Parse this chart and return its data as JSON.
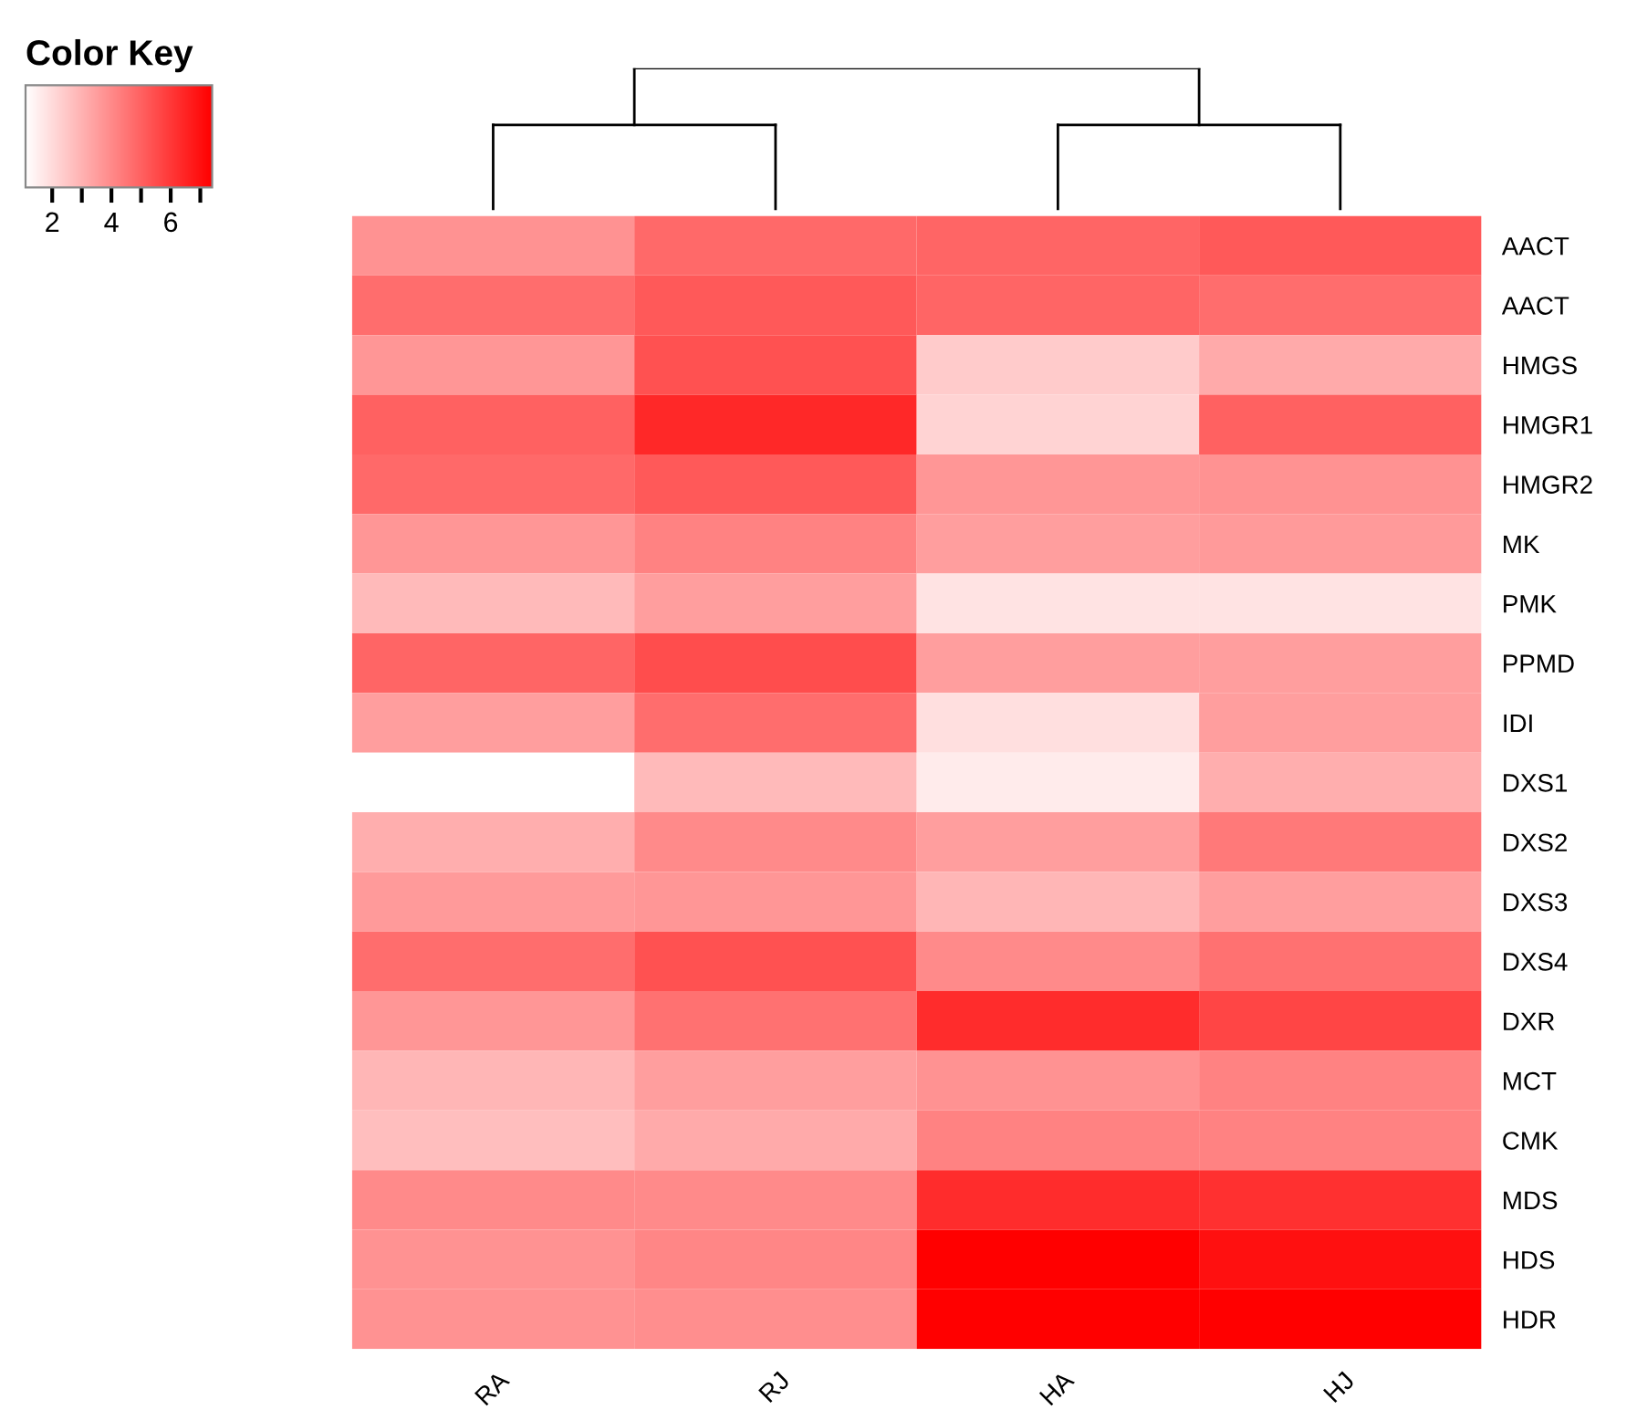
{
  "chart_data": {
    "type": "heatmap",
    "clabel": "Color Key",
    "categories": [
      "RA",
      "RJ",
      "HA",
      "HJ"
    ],
    "y_categories": [
      "AACT",
      "AACT",
      "HMGS",
      "HMGR1",
      "HMGR2",
      "MK",
      "PMK",
      "PPMD",
      "IDI",
      "DXS1",
      "DXS2",
      "DXS3",
      "DXS4",
      "DXR",
      "MCT",
      "CMK",
      "MDS",
      "HDS",
      "HDR"
    ],
    "cells": [
      [
        3.8,
        4.8,
        4.9,
        5.2
      ],
      [
        4.7,
        5.2,
        4.9,
        4.7
      ],
      [
        3.7,
        5.4,
        2.4,
        3.2
      ],
      [
        5.0,
        6.4,
        2.2,
        5.0
      ],
      [
        4.8,
        5.2,
        3.7,
        3.8
      ],
      [
        3.7,
        4.2,
        3.5,
        3.6
      ],
      [
        2.8,
        3.5,
        1.8,
        1.8
      ],
      [
        4.9,
        5.5,
        3.5,
        3.5
      ],
      [
        3.5,
        4.7,
        1.9,
        3.5
      ],
      [
        1.1,
        2.8,
        1.6,
        3.1
      ],
      [
        3.1,
        4.0,
        3.5,
        4.4
      ],
      [
        3.6,
        3.7,
        2.9,
        3.5
      ],
      [
        4.7,
        5.4,
        4.0,
        4.6
      ],
      [
        3.7,
        4.6,
        6.3,
        5.7
      ],
      [
        2.9,
        3.5,
        3.8,
        4.2
      ],
      [
        2.7,
        3.2,
        4.2,
        4.2
      ],
      [
        4.0,
        4.0,
        6.3,
        6.2
      ],
      [
        3.8,
        4.1,
        7.4,
        7.0
      ],
      [
        3.8,
        3.9,
        7.4,
        7.4
      ]
    ],
    "clim": [
      1.1,
      7.4
    ],
    "cticks": [
      2,
      {
        "value": 3,
        "label": null
      },
      4,
      {
        "value": 5,
        "label": null
      },
      6,
      {
        "value": 7,
        "label": null
      }
    ]
  }
}
